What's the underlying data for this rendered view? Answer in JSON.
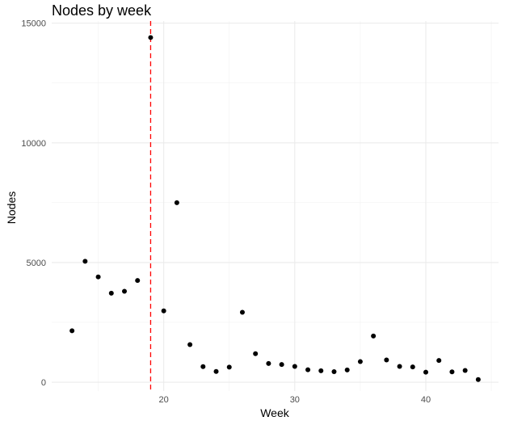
{
  "chart_data": {
    "type": "scatter",
    "title": "Nodes by week",
    "xlabel": "Week",
    "ylabel": "Nodes",
    "xlim": [
      11.45,
      45.55
    ],
    "ylim": [
      -370,
      15090
    ],
    "x_ticks": [
      20,
      30,
      40
    ],
    "x_minor_ticks": [
      15,
      25,
      35,
      45
    ],
    "y_ticks": [
      0,
      5000,
      10000,
      15000
    ],
    "y_minor_ticks": [
      2500,
      7500,
      12500
    ],
    "grid": true,
    "vline": {
      "x": 19,
      "color": "#ff0000",
      "style": "dashed"
    },
    "point_color": "#000000",
    "points": [
      {
        "x": 13,
        "y": 2150
      },
      {
        "x": 14,
        "y": 5050
      },
      {
        "x": 15,
        "y": 4400
      },
      {
        "x": 16,
        "y": 3720
      },
      {
        "x": 17,
        "y": 3800
      },
      {
        "x": 18,
        "y": 4250
      },
      {
        "x": 19,
        "y": 14400
      },
      {
        "x": 20,
        "y": 2980
      },
      {
        "x": 21,
        "y": 7500
      },
      {
        "x": 22,
        "y": 1570
      },
      {
        "x": 23,
        "y": 650
      },
      {
        "x": 24,
        "y": 450
      },
      {
        "x": 25,
        "y": 630
      },
      {
        "x": 26,
        "y": 2920
      },
      {
        "x": 27,
        "y": 1190
      },
      {
        "x": 28,
        "y": 780
      },
      {
        "x": 29,
        "y": 740
      },
      {
        "x": 30,
        "y": 660
      },
      {
        "x": 31,
        "y": 520
      },
      {
        "x": 32,
        "y": 480
      },
      {
        "x": 33,
        "y": 440
      },
      {
        "x": 34,
        "y": 510
      },
      {
        "x": 35,
        "y": 860
      },
      {
        "x": 36,
        "y": 1930
      },
      {
        "x": 37,
        "y": 930
      },
      {
        "x": 38,
        "y": 660
      },
      {
        "x": 39,
        "y": 640
      },
      {
        "x": 40,
        "y": 420
      },
      {
        "x": 41,
        "y": 910
      },
      {
        "x": 42,
        "y": 430
      },
      {
        "x": 43,
        "y": 490
      },
      {
        "x": 44,
        "y": 110
      }
    ]
  }
}
